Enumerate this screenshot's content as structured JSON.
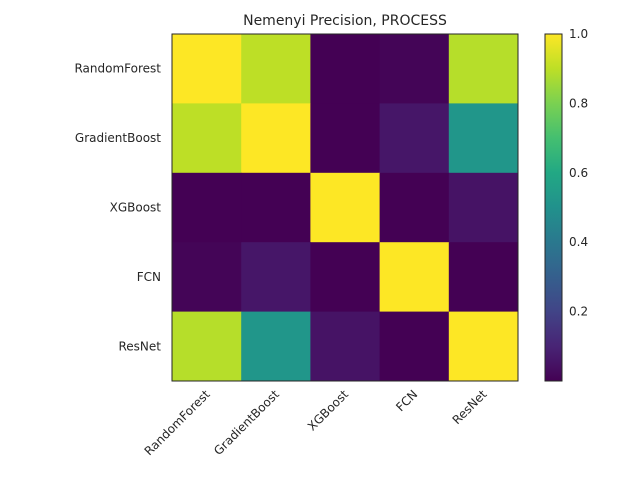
{
  "chart_data": {
    "type": "heatmap",
    "title": "Nemenyi Precision, PROCESS",
    "xlabel": "",
    "ylabel": "",
    "categories": [
      "RandomForest",
      "GradientBoost",
      "XGBoost",
      "FCN",
      "ResNet"
    ],
    "matrix": [
      [
        1.0,
        0.9,
        0.0,
        0.01,
        0.89
      ],
      [
        0.9,
        1.0,
        0.0,
        0.06,
        0.52
      ],
      [
        0.0,
        0.0,
        1.0,
        0.0,
        0.05
      ],
      [
        0.01,
        0.06,
        0.0,
        1.0,
        0.0
      ],
      [
        0.89,
        0.52,
        0.05,
        0.0,
        1.0
      ]
    ],
    "colorbar": {
      "colormap": "viridis",
      "range": [
        0.0,
        1.0
      ],
      "ticks": [
        0.2,
        0.4,
        0.6,
        0.8,
        1.0
      ],
      "tick_labels": [
        "0.2",
        "0.4",
        "0.6",
        "0.8",
        "1.0"
      ]
    },
    "grid": false
  }
}
